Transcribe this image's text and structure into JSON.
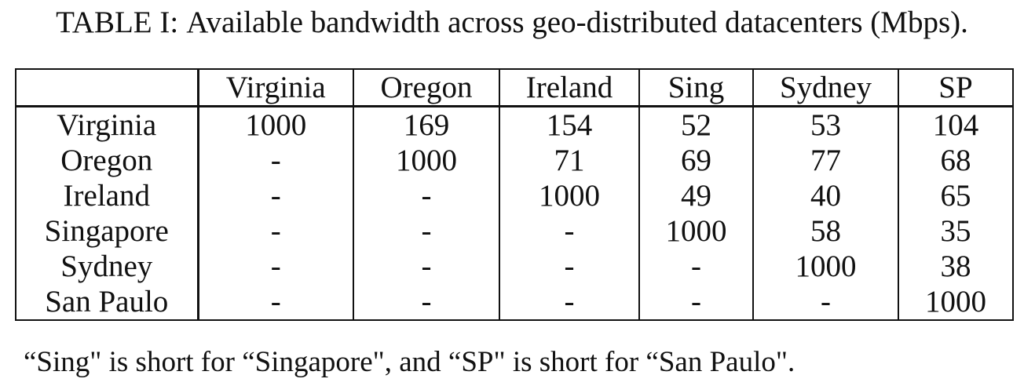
{
  "caption": {
    "label": "TABLE I:",
    "text": "Available bandwidth across geo-distributed datacenters (Mbps)."
  },
  "table": {
    "corner": "",
    "columns": [
      "Virginia",
      "Oregon",
      "Ireland",
      "Sing",
      "Sydney",
      "SP"
    ],
    "rows": [
      {
        "name": "Virginia",
        "cells": [
          "1000",
          "169",
          "154",
          "52",
          "53",
          "104"
        ]
      },
      {
        "name": "Oregon",
        "cells": [
          "-",
          "1000",
          "71",
          "69",
          "77",
          "68"
        ]
      },
      {
        "name": "Ireland",
        "cells": [
          "-",
          "-",
          "1000",
          "49",
          "40",
          "65"
        ]
      },
      {
        "name": "Singapore",
        "cells": [
          "-",
          "-",
          "-",
          "1000",
          "58",
          "35"
        ]
      },
      {
        "name": "Sydney",
        "cells": [
          "-",
          "-",
          "-",
          "-",
          "1000",
          "38"
        ]
      },
      {
        "name": "San Paulo",
        "cells": [
          "-",
          "-",
          "-",
          "-",
          "-",
          "1000"
        ]
      }
    ]
  },
  "note": "“Sing\" is short for “Singapore\", and “SP\" is short for “San Paulo\"."
}
